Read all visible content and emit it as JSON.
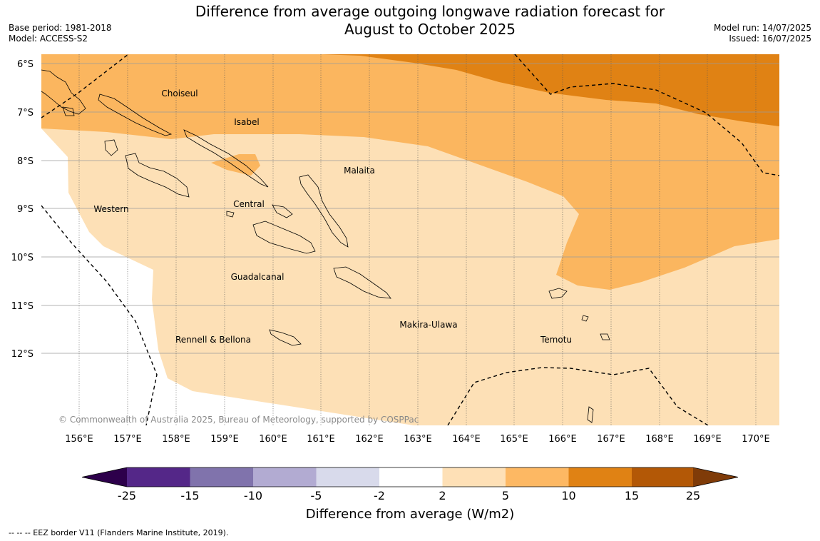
{
  "header": {
    "title_line1": "Difference from average outgoing longwave radiation forecast for",
    "title_line2": "August to October 2025",
    "base_period": "Base period: 1981-2018",
    "model": "Model: ACCESS-S2",
    "model_run": "Model run: 14/07/2025",
    "issued": "Issued: 16/07/2025"
  },
  "map": {
    "lon_labels": [
      "156°E",
      "157°E",
      "158°E",
      "159°E",
      "160°E",
      "161°E",
      "162°E",
      "163°E",
      "164°E",
      "165°E",
      "166°E",
      "167°E",
      "168°E",
      "169°E",
      "170°E"
    ],
    "lat_labels": [
      "6°S",
      "7°S",
      "8°S",
      "9°S",
      "10°S",
      "11°S",
      "12°S"
    ],
    "places": {
      "choiseul": "Choiseul",
      "isabel": "Isabel",
      "malaita": "Malaita",
      "western": "Western",
      "central": "Central",
      "guadalcanal": "Guadalcanal",
      "makira": "Makira-Ulawa",
      "temotu": "Temotu",
      "rennell": "Rennell & Bellona"
    },
    "copyright": "© Commonwealth of Australia 2025, Bureau of Meteorology, supported by COSPPac",
    "colors": {
      "band_2_5": "#fde0b6",
      "band_5_10": "#fbb65f",
      "band_10_15": "#e08214"
    }
  },
  "colorbar": {
    "ticks": [
      "-25",
      "-15",
      "-10",
      "-5",
      "-2",
      "2",
      "5",
      "10",
      "15",
      "25"
    ],
    "colors": [
      "#2d004b",
      "#542788",
      "#8073ac",
      "#b2abd2",
      "#d8daeb",
      "#ffffff",
      "#fee0b6",
      "#fdb863",
      "#e08214",
      "#b35806",
      "#7f3b08"
    ],
    "title": "Difference from average (W/m2)"
  },
  "footnote": "--  --  -- EEZ border V11 (Flanders Marine Institute, 2019)."
}
